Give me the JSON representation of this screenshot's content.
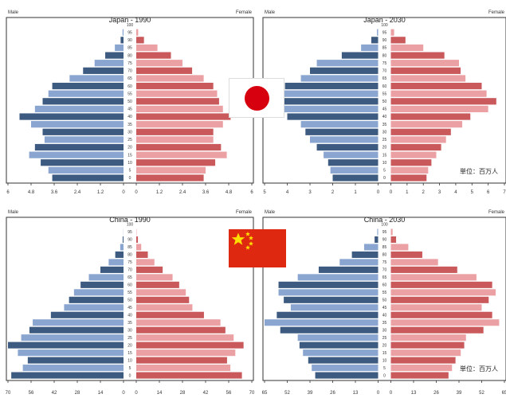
{
  "colors": {
    "male_dark": "#3d5a80",
    "male_light": "#8aa6d0",
    "female_dark": "#c9595b",
    "female_light": "#eba1a4",
    "japan_red": "#d7000f",
    "china_red": "#de2910",
    "china_star": "#ffde00"
  },
  "icons": {
    "japan": "japan-flag-icon",
    "china": "china-flag-icon"
  },
  "chart_data": [
    {
      "type": "bar",
      "title": "Japan - 1990",
      "left_label": "Male",
      "right_label": "Female",
      "unit_note": "",
      "age_ticks": [
        "100",
        "95",
        "90",
        "85",
        "80",
        "75",
        "70",
        "65",
        "60",
        "55",
        "50",
        "45",
        "40",
        "35",
        "30",
        "25",
        "20",
        "15",
        "10",
        "5",
        "0"
      ],
      "x_ticks": [
        "6",
        "4.8",
        "3.6",
        "2.4",
        "1.2",
        "0",
        "0",
        "1.2",
        "2.4",
        "3.6",
        "4.8",
        "6"
      ],
      "xlim": 6,
      "male": [
        0,
        0.05,
        0.15,
        0.45,
        0.95,
        1.5,
        2.1,
        2.8,
        3.7,
        3.9,
        4.2,
        4.6,
        5.4,
        4.8,
        4.2,
        4.1,
        4.6,
        4.9,
        4.3,
        3.9,
        3.7
      ],
      "female": [
        0,
        0.1,
        0.4,
        1.1,
        1.8,
        2.4,
        2.9,
        3.5,
        4.0,
        4.2,
        4.3,
        4.5,
        4.9,
        4.5,
        4.0,
        4.0,
        4.4,
        4.7,
        4.1,
        3.6,
        3.5
      ]
    },
    {
      "type": "bar",
      "title": "Japan - 2030",
      "left_label": "Male",
      "right_label": "Female",
      "unit_note": "単位：百万人",
      "age_ticks": [
        "100",
        "95",
        "90",
        "85",
        "80",
        "75",
        "70",
        "65",
        "60",
        "55",
        "50",
        "45",
        "40",
        "35",
        "30",
        "25",
        "20",
        "15",
        "10",
        "5",
        "0"
      ],
      "x_ticks": [
        "5",
        "4",
        "3",
        "2",
        "1",
        "0",
        "0",
        "1",
        "2",
        "3",
        "4",
        "5",
        "6",
        "7"
      ],
      "x_max_left": 5,
      "x_max_right": 7,
      "male": [
        0,
        0.05,
        0.3,
        0.75,
        1.6,
        2.7,
        3.0,
        3.4,
        4.1,
        4.3,
        4.4,
        4.3,
        4.0,
        3.4,
        3.2,
        3.0,
        2.7,
        2.4,
        2.2,
        2.1,
        2.0
      ],
      "female": [
        0,
        0.2,
        0.9,
        2.0,
        3.3,
        4.2,
        4.3,
        4.6,
        5.6,
        5.9,
        6.5,
        6.0,
        4.9,
        4.4,
        3.7,
        3.4,
        3.1,
        2.8,
        2.5,
        2.3,
        2.2
      ]
    },
    {
      "type": "bar",
      "title": "China - 1990",
      "left_label": "Male",
      "right_label": "Female",
      "unit_note": "",
      "age_ticks": [
        "100",
        "95",
        "90",
        "85",
        "80",
        "75",
        "70",
        "65",
        "60",
        "55",
        "50",
        "45",
        "40",
        "35",
        "30",
        "25",
        "20",
        "15",
        "10",
        "5",
        "0"
      ],
      "x_ticks": [
        "70",
        "56",
        "42",
        "28",
        "14",
        "0",
        "0",
        "14",
        "28",
        "42",
        "56",
        "70"
      ],
      "xlim": 70,
      "male": [
        0,
        0.1,
        0.5,
        2,
        5,
        9,
        14,
        21,
        26,
        30,
        33,
        36,
        44,
        55,
        57,
        62,
        70,
        64,
        58,
        61,
        68
      ],
      "female": [
        0,
        0.2,
        1,
        3,
        7,
        11,
        16,
        22,
        26,
        30,
        32,
        34,
        41,
        51,
        54,
        59,
        65,
        60,
        55,
        57,
        64
      ]
    },
    {
      "type": "bar",
      "title": "China - 2030",
      "left_label": "Male",
      "right_label": "Female",
      "unit_note": "単位：百万人",
      "age_ticks": [
        "100",
        "95",
        "90",
        "85",
        "80",
        "75",
        "70",
        "65",
        "60",
        "55",
        "50",
        "45",
        "40",
        "35",
        "30",
        "25",
        "20",
        "15",
        "10",
        "5",
        "0"
      ],
      "x_ticks": [
        "65",
        "52",
        "39",
        "26",
        "13",
        "0",
        "0",
        "13",
        "26",
        "39",
        "52",
        "65"
      ],
      "xlim": 65,
      "male": [
        0,
        0.5,
        2,
        8,
        15,
        22,
        34,
        46,
        57,
        57,
        54,
        50,
        58,
        65,
        56,
        46,
        45,
        43,
        40,
        38,
        36
      ],
      "female": [
        0,
        1,
        3,
        10,
        18,
        27,
        38,
        49,
        58,
        60,
        56,
        52,
        58,
        62,
        53,
        43,
        42,
        40,
        37,
        35,
        33
      ]
    }
  ]
}
